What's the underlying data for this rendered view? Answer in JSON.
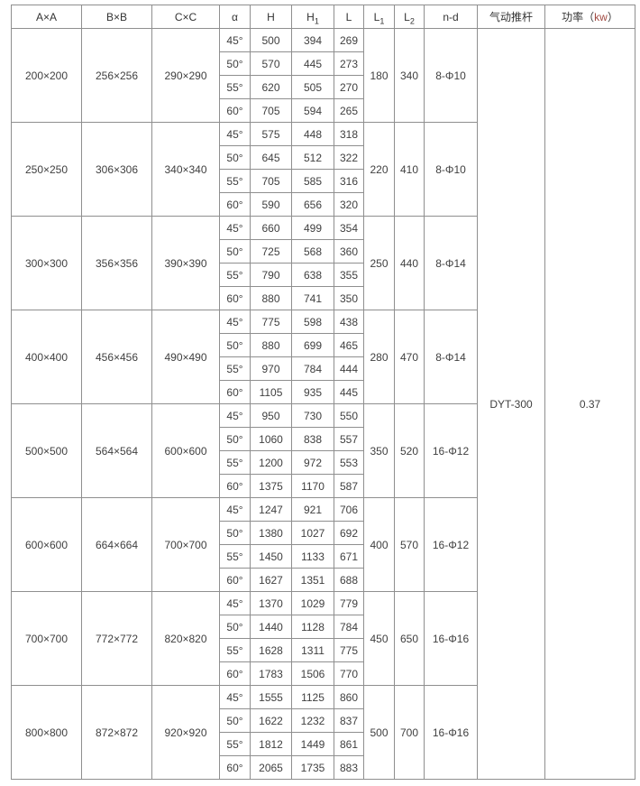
{
  "table": {
    "headers": [
      {
        "id": "axa",
        "text": "A×A"
      },
      {
        "id": "bxb",
        "text": "B×B"
      },
      {
        "id": "cxc",
        "text": "C×C"
      },
      {
        "id": "alpha",
        "text": "α"
      },
      {
        "id": "h",
        "text": "H"
      },
      {
        "id": "h1",
        "text": "H",
        "sub": "1"
      },
      {
        "id": "l",
        "text": "L"
      },
      {
        "id": "l1",
        "text": "L",
        "sub": "1"
      },
      {
        "id": "l2",
        "text": "L",
        "sub": "2"
      },
      {
        "id": "nd",
        "text": "n-d"
      },
      {
        "id": "actuator",
        "text": "气动推杆"
      },
      {
        "id": "power",
        "text": "功率（",
        "unit": "kw",
        "suffix": "）"
      }
    ],
    "groups": [
      {
        "a": "200×200",
        "b": "256×256",
        "c": "290×290",
        "rows": [
          {
            "angle": "45°",
            "h": "500",
            "h1": "394",
            "l": "269"
          },
          {
            "angle": "50°",
            "h": "570",
            "h1": "445",
            "l": "273"
          },
          {
            "angle": "55°",
            "h": "620",
            "h1": "505",
            "l": "270"
          },
          {
            "angle": "60°",
            "h": "705",
            "h1": "594",
            "l": "265"
          }
        ],
        "l1": "180",
        "l2": "340",
        "nd": "8-Φ10"
      },
      {
        "a": "250×250",
        "b": "306×306",
        "c": "340×340",
        "rows": [
          {
            "angle": "45°",
            "h": "575",
            "h1": "448",
            "l": "318"
          },
          {
            "angle": "50°",
            "h": "645",
            "h1": "512",
            "l": "322"
          },
          {
            "angle": "55°",
            "h": "705",
            "h1": "585",
            "l": "316"
          },
          {
            "angle": "60°",
            "h": "590",
            "h1": "656",
            "l": "320"
          }
        ],
        "l1": "220",
        "l2": "410",
        "nd": "8-Φ10"
      },
      {
        "a": "300×300",
        "b": "356×356",
        "c": "390×390",
        "rows": [
          {
            "angle": "45°",
            "h": "660",
            "h1": "499",
            "l": "354"
          },
          {
            "angle": "50°",
            "h": "725",
            "h1": "568",
            "l": "360"
          },
          {
            "angle": "55°",
            "h": "790",
            "h1": "638",
            "l": "355"
          },
          {
            "angle": "60°",
            "h": "880",
            "h1": "741",
            "l": "350"
          }
        ],
        "l1": "250",
        "l2": "440",
        "nd": "8-Φ14"
      },
      {
        "a": "400×400",
        "b": "456×456",
        "c": "490×490",
        "rows": [
          {
            "angle": "45°",
            "h": "775",
            "h1": "598",
            "l": "438"
          },
          {
            "angle": "50°",
            "h": "880",
            "h1": "699",
            "l": "465"
          },
          {
            "angle": "55°",
            "h": "970",
            "h1": "784",
            "l": "444"
          },
          {
            "angle": "60°",
            "h": "1105",
            "h1": "935",
            "l": "445"
          }
        ],
        "l1": "280",
        "l2": "470",
        "nd": "8-Φ14"
      },
      {
        "a": "500×500",
        "b": "564×564",
        "c": "600×600",
        "rows": [
          {
            "angle": "45°",
            "h": "950",
            "h1": "730",
            "l": "550"
          },
          {
            "angle": "50°",
            "h": "1060",
            "h1": "838",
            "l": "557"
          },
          {
            "angle": "55°",
            "h": "1200",
            "h1": "972",
            "l": "553"
          },
          {
            "angle": "60°",
            "h": "1375",
            "h1": "1170",
            "l": "587"
          }
        ],
        "l1": "350",
        "l2": "520",
        "nd": "16-Φ12"
      },
      {
        "a": "600×600",
        "b": "664×664",
        "c": "700×700",
        "rows": [
          {
            "angle": "45°",
            "h": "1247",
            "h1": "921",
            "l": "706"
          },
          {
            "angle": "50°",
            "h": "1380",
            "h1": "1027",
            "l": "692"
          },
          {
            "angle": "55°",
            "h": "1450",
            "h1": "1133",
            "l": "671"
          },
          {
            "angle": "60°",
            "h": "1627",
            "h1": "1351",
            "l": "688"
          }
        ],
        "l1": "400",
        "l2": "570",
        "nd": "16-Φ12"
      },
      {
        "a": "700×700",
        "b": "772×772",
        "c": "820×820",
        "rows": [
          {
            "angle": "45°",
            "h": "1370",
            "h1": "1029",
            "l": "779"
          },
          {
            "angle": "50°",
            "h": "1440",
            "h1": "1128",
            "l": "784"
          },
          {
            "angle": "55°",
            "h": "1628",
            "h1": "1311",
            "l": "775"
          },
          {
            "angle": "60°",
            "h": "1783",
            "h1": "1506",
            "l": "770"
          }
        ],
        "l1": "450",
        "l2": "650",
        "nd": "16-Φ16"
      },
      {
        "a": "800×800",
        "b": "872×872",
        "c": "920×920",
        "rows": [
          {
            "angle": "45°",
            "h": "1555",
            "h1": "1125",
            "l": "860"
          },
          {
            "angle": "50°",
            "h": "1622",
            "h1": "1232",
            "l": "837"
          },
          {
            "angle": "55°",
            "h": "1812",
            "h1": "1449",
            "l": "861"
          },
          {
            "angle": "60°",
            "h": "2065",
            "h1": "1735",
            "l": "883"
          }
        ],
        "l1": "500",
        "l2": "700",
        "nd": "16-Φ16"
      }
    ],
    "actuator": "DYT-300",
    "power": "0.37"
  },
  "colors": {
    "border_inner": "#8f8f8f",
    "border_outer": "#6e6e6e",
    "text": "#3f3f3f",
    "unit_accent": "#a14a42",
    "background": "#ffffff"
  },
  "chart_data": {
    "type": "table",
    "columns": [
      "A×A",
      "B×B",
      "C×C",
      "α",
      "H",
      "H1",
      "L",
      "L1",
      "L2",
      "n-d",
      "气动推杆",
      "功率（kw）"
    ],
    "rows": [
      [
        "200×200",
        "256×256",
        "290×290",
        "45°",
        500,
        394,
        269,
        180,
        340,
        "8-Φ10",
        "DYT-300",
        0.37
      ],
      [
        "200×200",
        "256×256",
        "290×290",
        "50°",
        570,
        445,
        273,
        180,
        340,
        "8-Φ10",
        "DYT-300",
        0.37
      ],
      [
        "200×200",
        "256×256",
        "290×290",
        "55°",
        620,
        505,
        270,
        180,
        340,
        "8-Φ10",
        "DYT-300",
        0.37
      ],
      [
        "200×200",
        "256×256",
        "290×290",
        "60°",
        705,
        594,
        265,
        180,
        340,
        "8-Φ10",
        "DYT-300",
        0.37
      ],
      [
        "250×250",
        "306×306",
        "340×340",
        "45°",
        575,
        448,
        318,
        220,
        410,
        "8-Φ10",
        "DYT-300",
        0.37
      ],
      [
        "250×250",
        "306×306",
        "340×340",
        "50°",
        645,
        512,
        322,
        220,
        410,
        "8-Φ10",
        "DYT-300",
        0.37
      ],
      [
        "250×250",
        "306×306",
        "340×340",
        "55°",
        705,
        585,
        316,
        220,
        410,
        "8-Φ10",
        "DYT-300",
        0.37
      ],
      [
        "250×250",
        "306×306",
        "340×340",
        "60°",
        590,
        656,
        320,
        220,
        410,
        "8-Φ10",
        "DYT-300",
        0.37
      ],
      [
        "300×300",
        "356×356",
        "390×390",
        "45°",
        660,
        499,
        354,
        250,
        440,
        "8-Φ14",
        "DYT-300",
        0.37
      ],
      [
        "300×300",
        "356×356",
        "390×390",
        "50°",
        725,
        568,
        360,
        250,
        440,
        "8-Φ14",
        "DYT-300",
        0.37
      ],
      [
        "300×300",
        "356×356",
        "390×390",
        "55°",
        790,
        638,
        355,
        250,
        440,
        "8-Φ14",
        "DYT-300",
        0.37
      ],
      [
        "300×300",
        "356×356",
        "390×390",
        "60°",
        880,
        741,
        350,
        250,
        440,
        "8-Φ14",
        "DYT-300",
        0.37
      ],
      [
        "400×400",
        "456×456",
        "490×490",
        "45°",
        775,
        598,
        438,
        280,
        470,
        "8-Φ14",
        "DYT-300",
        0.37
      ],
      [
        "400×400",
        "456×456",
        "490×490",
        "50°",
        880,
        699,
        465,
        280,
        470,
        "8-Φ14",
        "DYT-300",
        0.37
      ],
      [
        "400×400",
        "456×456",
        "490×490",
        "55°",
        970,
        784,
        444,
        280,
        470,
        "8-Φ14",
        "DYT-300",
        0.37
      ],
      [
        "400×400",
        "456×456",
        "490×490",
        "60°",
        1105,
        935,
        445,
        280,
        470,
        "8-Φ14",
        "DYT-300",
        0.37
      ],
      [
        "500×500",
        "564×564",
        "600×600",
        "45°",
        950,
        730,
        550,
        350,
        520,
        "16-Φ12",
        "DYT-300",
        0.37
      ],
      [
        "500×500",
        "564×564",
        "600×600",
        "50°",
        1060,
        838,
        557,
        350,
        520,
        "16-Φ12",
        "DYT-300",
        0.37
      ],
      [
        "500×500",
        "564×564",
        "600×600",
        "55°",
        1200,
        972,
        553,
        350,
        520,
        "16-Φ12",
        "DYT-300",
        0.37
      ],
      [
        "500×500",
        "564×564",
        "600×600",
        "60°",
        1375,
        1170,
        587,
        350,
        520,
        "16-Φ12",
        "DYT-300",
        0.37
      ],
      [
        "600×600",
        "664×664",
        "700×700",
        "45°",
        1247,
        921,
        706,
        400,
        570,
        "16-Φ12",
        "DYT-300",
        0.37
      ],
      [
        "600×600",
        "664×664",
        "700×700",
        "50°",
        1380,
        1027,
        692,
        400,
        570,
        "16-Φ12",
        "DYT-300",
        0.37
      ],
      [
        "600×600",
        "664×664",
        "700×700",
        "55°",
        1450,
        1133,
        671,
        400,
        570,
        "16-Φ12",
        "DYT-300",
        0.37
      ],
      [
        "600×600",
        "664×664",
        "700×700",
        "60°",
        1627,
        1351,
        688,
        400,
        570,
        "16-Φ12",
        "DYT-300",
        0.37
      ],
      [
        "700×700",
        "772×772",
        "820×820",
        "45°",
        1370,
        1029,
        779,
        450,
        650,
        "16-Φ16",
        "DYT-300",
        0.37
      ],
      [
        "700×700",
        "772×772",
        "820×820",
        "50°",
        1440,
        1128,
        784,
        450,
        650,
        "16-Φ16",
        "DYT-300",
        0.37
      ],
      [
        "700×700",
        "772×772",
        "820×820",
        "55°",
        1628,
        1311,
        775,
        450,
        650,
        "16-Φ16",
        "DYT-300",
        0.37
      ],
      [
        "700×700",
        "772×772",
        "820×820",
        "60°",
        1783,
        1506,
        770,
        450,
        650,
        "16-Φ16",
        "DYT-300",
        0.37
      ],
      [
        "800×800",
        "872×872",
        "920×920",
        "45°",
        1555,
        1125,
        860,
        500,
        700,
        "16-Φ16",
        "DYT-300",
        0.37
      ],
      [
        "800×800",
        "872×872",
        "920×920",
        "50°",
        1622,
        1232,
        837,
        500,
        700,
        "16-Φ16",
        "DYT-300",
        0.37
      ],
      [
        "800×800",
        "872×872",
        "920×920",
        "55°",
        1812,
        1449,
        861,
        500,
        700,
        "16-Φ16",
        "DYT-300",
        0.37
      ],
      [
        "800×800",
        "872×872",
        "920×920",
        "60°",
        2065,
        1735,
        883,
        500,
        700,
        "16-Φ16",
        "DYT-300",
        0.37
      ]
    ]
  }
}
